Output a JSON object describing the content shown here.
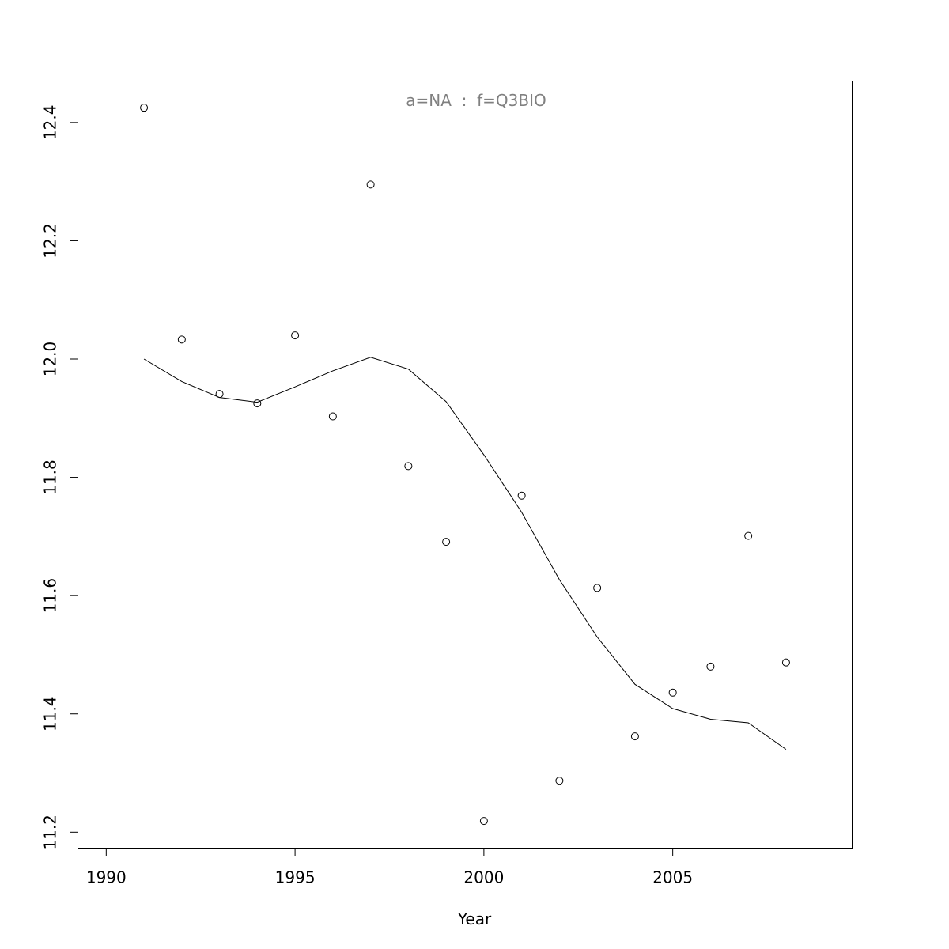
{
  "chart_data": {
    "type": "scatter",
    "title": "",
    "annotation": "a=NA  :  f=Q3BIO",
    "xlabel": "Year",
    "ylabel": "",
    "xlim": [
      1989.25,
      2009.75
    ],
    "ylim": [
      11.173,
      12.47
    ],
    "xticks": [
      1990,
      1995,
      2000,
      2005
    ],
    "yticks": [
      11.2,
      11.4,
      11.6,
      11.8,
      12.0,
      12.2,
      12.4
    ],
    "grid": false,
    "series": [
      {
        "kind": "points",
        "x": [
          1991,
          1992,
          1993,
          1994,
          1995,
          1996,
          1997,
          1998,
          1999,
          2000,
          2001,
          2002,
          2003,
          2004,
          2005,
          2006,
          2007,
          2008
        ],
        "y": [
          12.425,
          12.033,
          11.941,
          11.925,
          12.04,
          11.903,
          12.295,
          11.819,
          11.691,
          11.219,
          11.769,
          11.287,
          11.613,
          11.362,
          11.436,
          11.48,
          11.701,
          11.487
        ]
      },
      {
        "kind": "line",
        "x": [
          1991,
          1992,
          1993,
          1994,
          1995,
          1996,
          1997,
          1998,
          1999,
          2000,
          2001,
          2002,
          2003,
          2004,
          2005,
          2006,
          2007,
          2008
        ],
        "y": [
          12.0,
          11.962,
          11.935,
          11.927,
          11.953,
          11.98,
          12.003,
          11.983,
          11.928,
          11.838,
          11.741,
          11.627,
          11.53,
          11.45,
          11.409,
          11.391,
          11.385,
          11.34
        ]
      }
    ]
  }
}
